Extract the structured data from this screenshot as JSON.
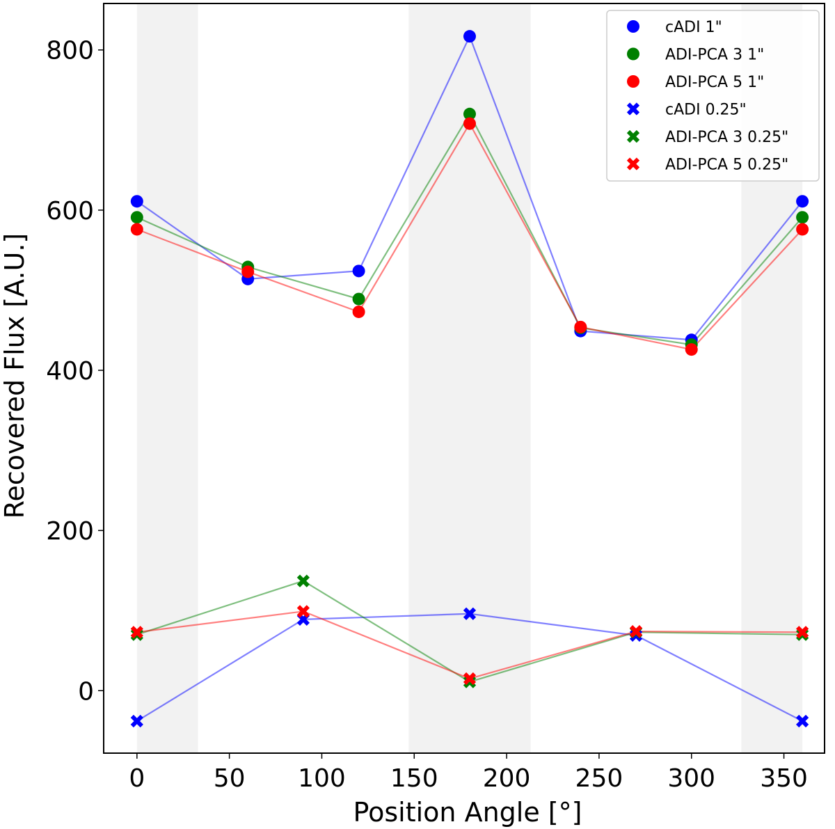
{
  "chart_data": {
    "type": "line",
    "xlabel": "Position Angle [°]",
    "ylabel": "Recovered Flux [A.U.]",
    "xlim": [
      -18,
      372
    ],
    "ylim": [
      -78,
      858
    ],
    "xticks": [
      0,
      50,
      100,
      150,
      200,
      250,
      300,
      350
    ],
    "yticks": [
      0,
      200,
      400,
      600,
      800
    ],
    "shaded_bands": [
      [
        0,
        33
      ],
      [
        147,
        213
      ],
      [
        327,
        360
      ]
    ],
    "legend_position": "top-right",
    "series": [
      {
        "name": "cADI 1\"",
        "color": "#0000ff",
        "marker": "circle",
        "x": [
          0,
          60,
          120,
          180,
          240,
          300,
          360
        ],
        "values": [
          611,
          514,
          524,
          817,
          449,
          438,
          611
        ]
      },
      {
        "name": "ADI-PCA 3 1\"",
        "color": "#008000",
        "marker": "circle",
        "x": [
          0,
          60,
          120,
          180,
          240,
          300,
          360
        ],
        "values": [
          591,
          529,
          489,
          720,
          453,
          432,
          591
        ]
      },
      {
        "name": "ADI-PCA 5 1\"",
        "color": "#ff0000",
        "marker": "circle",
        "x": [
          0,
          60,
          120,
          180,
          240,
          300,
          360
        ],
        "values": [
          576,
          523,
          473,
          708,
          454,
          426,
          576
        ]
      },
      {
        "name": "cADI 0.25\"",
        "color": "#0000ff",
        "marker": "x",
        "x": [
          0,
          90,
          180,
          270,
          360
        ],
        "values": [
          -38,
          89,
          96,
          69,
          -38
        ]
      },
      {
        "name": "ADI-PCA 3 0.25\"",
        "color": "#008000",
        "marker": "x",
        "x": [
          0,
          90,
          180,
          270,
          360
        ],
        "values": [
          70,
          137,
          11,
          73,
          70
        ]
      },
      {
        "name": "ADI-PCA 5 0.25\"",
        "color": "#ff0000",
        "marker": "x",
        "x": [
          0,
          90,
          180,
          270,
          360
        ],
        "values": [
          73,
          99,
          15,
          74,
          73
        ]
      }
    ]
  }
}
